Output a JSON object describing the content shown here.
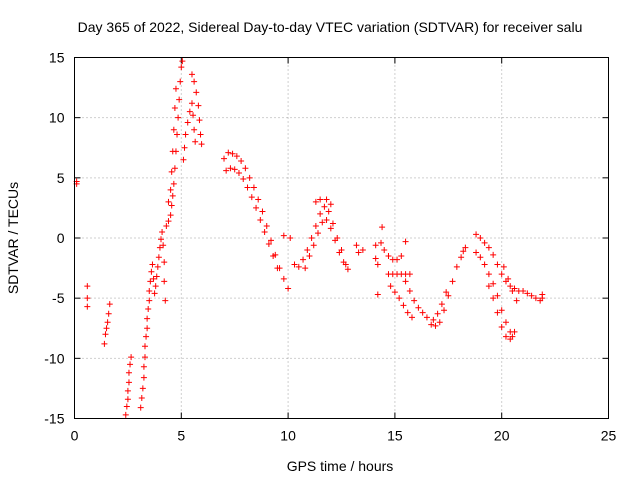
{
  "chart_data": {
    "type": "scatter",
    "title": "Day 365 of 2022, Sidereal Day-to-day VTEC variation (SDTVAR) for receiver salu",
    "xlabel": "GPS time / hours",
    "ylabel": "SDTVAR / TECUs",
    "xlim": [
      0,
      25
    ],
    "ylim": [
      -15,
      15
    ],
    "xticks": [
      0,
      5,
      10,
      15,
      20,
      25
    ],
    "yticks": [
      -15,
      -10,
      -5,
      0,
      5,
      10,
      15
    ],
    "xtick_labels": [
      "0",
      "5",
      "10",
      "15",
      "20",
      "25"
    ],
    "ytick_labels": [
      "-15",
      "-10",
      "-5",
      "0",
      "5",
      "10",
      "15"
    ],
    "grid": true,
    "marker": "+",
    "color": "#ff0000",
    "series": [
      {
        "name": "SDTVAR",
        "points": [
          [
            0.1,
            4.7
          ],
          [
            0.1,
            4.5
          ],
          [
            0.6,
            -4.0
          ],
          [
            0.6,
            -5.0
          ],
          [
            0.6,
            -5.7
          ],
          [
            1.4,
            -8.8
          ],
          [
            1.45,
            -8.0
          ],
          [
            1.5,
            -7.5
          ],
          [
            1.55,
            -7.0
          ],
          [
            1.6,
            -6.3
          ],
          [
            1.65,
            -5.5
          ],
          [
            2.4,
            -14.7
          ],
          [
            2.45,
            -14.0
          ],
          [
            2.5,
            -13.4
          ],
          [
            2.5,
            -12.7
          ],
          [
            2.55,
            -12.0
          ],
          [
            2.55,
            -11.2
          ],
          [
            2.6,
            -10.5
          ],
          [
            2.65,
            -9.9
          ],
          [
            3.1,
            -14.1
          ],
          [
            3.15,
            -13.3
          ],
          [
            3.2,
            -12.5
          ],
          [
            3.25,
            -11.6
          ],
          [
            3.25,
            -10.7
          ],
          [
            3.3,
            -9.9
          ],
          [
            3.3,
            -9.0
          ],
          [
            3.35,
            -8.2
          ],
          [
            3.4,
            -7.5
          ],
          [
            3.4,
            -6.7
          ],
          [
            3.45,
            -5.9
          ],
          [
            3.5,
            -5.2
          ],
          [
            3.5,
            -4.4
          ],
          [
            3.55,
            -3.6
          ],
          [
            3.6,
            -2.8
          ],
          [
            3.65,
            -2.2
          ],
          [
            3.7,
            -3.4
          ],
          [
            3.75,
            -4.6
          ],
          [
            3.8,
            -4.0
          ],
          [
            3.85,
            -3.2
          ],
          [
            3.9,
            -2.4
          ],
          [
            3.95,
            -1.6
          ],
          [
            4.0,
            -0.8
          ],
          [
            4.05,
            -0.1
          ],
          [
            4.1,
            0.5
          ],
          [
            4.15,
            -0.6
          ],
          [
            4.2,
            -2.0
          ],
          [
            4.2,
            -3.6
          ],
          [
            4.25,
            -5.2
          ],
          [
            4.3,
            1.0
          ],
          [
            4.4,
            1.4
          ],
          [
            4.5,
            1.9
          ],
          [
            4.55,
            2.7
          ],
          [
            4.6,
            3.5
          ],
          [
            4.65,
            4.5
          ],
          [
            4.7,
            5.8
          ],
          [
            4.75,
            7.2
          ],
          [
            4.8,
            8.6
          ],
          [
            4.85,
            10.0
          ],
          [
            4.9,
            11.5
          ],
          [
            4.95,
            13.0
          ],
          [
            5.0,
            14.2
          ],
          [
            5.05,
            14.7
          ],
          [
            4.4,
            3.0
          ],
          [
            4.5,
            4.0
          ],
          [
            4.55,
            5.5
          ],
          [
            4.6,
            7.2
          ],
          [
            4.65,
            9.0
          ],
          [
            4.7,
            10.8
          ],
          [
            4.75,
            12.4
          ],
          [
            5.1,
            6.5
          ],
          [
            5.15,
            7.5
          ],
          [
            5.2,
            8.6
          ],
          [
            5.3,
            9.6
          ],
          [
            5.4,
            10.5
          ],
          [
            5.5,
            11.2
          ],
          [
            5.55,
            10.2
          ],
          [
            5.6,
            9.0
          ],
          [
            5.65,
            8.0
          ],
          [
            5.5,
            13.6
          ],
          [
            5.6,
            13.0
          ],
          [
            5.7,
            12.1
          ],
          [
            5.8,
            11.0
          ],
          [
            5.85,
            9.8
          ],
          [
            5.9,
            8.6
          ],
          [
            5.95,
            7.8
          ],
          [
            7.0,
            6.6
          ],
          [
            7.2,
            7.1
          ],
          [
            7.4,
            7.0
          ],
          [
            7.6,
            6.8
          ],
          [
            7.8,
            6.4
          ],
          [
            8.0,
            5.8
          ],
          [
            8.2,
            5.0
          ],
          [
            8.4,
            4.2
          ],
          [
            8.6,
            3.2
          ],
          [
            8.8,
            2.2
          ],
          [
            9.0,
            1.0
          ],
          [
            9.2,
            -0.2
          ],
          [
            9.4,
            -1.4
          ],
          [
            9.6,
            -2.5
          ],
          [
            9.8,
            -3.4
          ],
          [
            10.0,
            -4.2
          ],
          [
            7.1,
            5.6
          ],
          [
            7.3,
            5.8
          ],
          [
            7.5,
            5.7
          ],
          [
            7.7,
            5.4
          ],
          [
            7.9,
            4.9
          ],
          [
            8.1,
            4.2
          ],
          [
            8.3,
            3.4
          ],
          [
            8.5,
            2.5
          ],
          [
            8.7,
            1.5
          ],
          [
            8.9,
            0.5
          ],
          [
            9.1,
            -0.5
          ],
          [
            9.3,
            -1.5
          ],
          [
            9.5,
            -2.5
          ],
          [
            9.8,
            0.2
          ],
          [
            10.1,
            0.0
          ],
          [
            10.3,
            -2.2
          ],
          [
            10.5,
            -2.4
          ],
          [
            10.7,
            -1.8
          ],
          [
            10.9,
            -1.0
          ],
          [
            11.1,
            0.0
          ],
          [
            11.3,
            1.0
          ],
          [
            11.5,
            2.0
          ],
          [
            11.7,
            2.6
          ],
          [
            11.9,
            2.2
          ],
          [
            12.1,
            1.2
          ],
          [
            12.3,
            0.0
          ],
          [
            12.5,
            -1.0
          ],
          [
            12.7,
            -2.2
          ],
          [
            12.8,
            -2.6
          ],
          [
            10.8,
            -2.5
          ],
          [
            11.0,
            -1.5
          ],
          [
            11.2,
            -0.6
          ],
          [
            11.4,
            0.4
          ],
          [
            11.6,
            1.3
          ],
          [
            11.8,
            1.5
          ],
          [
            12.0,
            0.8
          ],
          [
            12.2,
            -0.2
          ],
          [
            12.4,
            -1.2
          ],
          [
            12.6,
            -2.0
          ],
          [
            11.3,
            3.0
          ],
          [
            11.5,
            3.2
          ],
          [
            11.8,
            3.2
          ],
          [
            12.0,
            2.8
          ],
          [
            13.2,
            -0.6
          ],
          [
            13.3,
            -1.2
          ],
          [
            13.5,
            -1.0
          ],
          [
            14.1,
            -0.6
          ],
          [
            14.1,
            -1.7
          ],
          [
            14.2,
            -2.2
          ],
          [
            14.2,
            -4.7
          ],
          [
            14.35,
            -0.4
          ],
          [
            14.4,
            0.9
          ],
          [
            14.5,
            -1.0
          ],
          [
            14.7,
            -1.5
          ],
          [
            14.9,
            -1.8
          ],
          [
            15.1,
            -1.8
          ],
          [
            15.3,
            -1.5
          ],
          [
            15.5,
            -0.3
          ],
          [
            14.7,
            -3.0
          ],
          [
            14.9,
            -3.0
          ],
          [
            15.1,
            -3.0
          ],
          [
            15.3,
            -3.0
          ],
          [
            15.5,
            -3.0
          ],
          [
            15.7,
            -3.0
          ],
          [
            14.8,
            -4.0
          ],
          [
            15.0,
            -4.5
          ],
          [
            15.2,
            -5.0
          ],
          [
            15.4,
            -5.6
          ],
          [
            15.6,
            -6.2
          ],
          [
            15.8,
            -6.6
          ],
          [
            15.5,
            -3.6
          ],
          [
            15.7,
            -4.4
          ],
          [
            15.9,
            -5.2
          ],
          [
            16.1,
            -5.8
          ],
          [
            16.3,
            -6.2
          ],
          [
            16.5,
            -6.6
          ],
          [
            16.7,
            -7.2
          ],
          [
            16.9,
            -7.3
          ],
          [
            17.1,
            -7.0
          ],
          [
            17.3,
            -6.0
          ],
          [
            17.5,
            -4.8
          ],
          [
            17.7,
            -3.6
          ],
          [
            17.9,
            -2.4
          ],
          [
            18.1,
            -1.6
          ],
          [
            18.2,
            -1.1
          ],
          [
            18.3,
            -0.8
          ],
          [
            16.8,
            -6.8
          ],
          [
            17.0,
            -6.3
          ],
          [
            17.2,
            -5.5
          ],
          [
            17.4,
            -4.5
          ],
          [
            18.8,
            0.3
          ],
          [
            19.0,
            0.0
          ],
          [
            19.2,
            -0.4
          ],
          [
            19.4,
            -0.8
          ],
          [
            19.6,
            -1.4
          ],
          [
            19.8,
            -2.2
          ],
          [
            20.0,
            -3.0
          ],
          [
            20.2,
            -3.6
          ],
          [
            20.4,
            -4.0
          ],
          [
            20.6,
            -4.2
          ],
          [
            20.8,
            -4.4
          ],
          [
            18.8,
            -1.2
          ],
          [
            19.0,
            -1.6
          ],
          [
            19.2,
            -2.2
          ],
          [
            19.4,
            -3.0
          ],
          [
            19.6,
            -3.8
          ],
          [
            19.8,
            -4.8
          ],
          [
            20.0,
            -6.0
          ],
          [
            20.2,
            -7.0
          ],
          [
            20.4,
            -7.8
          ],
          [
            20.5,
            -8.2
          ],
          [
            20.6,
            -7.8
          ],
          [
            19.4,
            -4.0
          ],
          [
            19.6,
            -5.0
          ],
          [
            19.8,
            -6.2
          ],
          [
            20.0,
            -7.4
          ],
          [
            20.2,
            -8.2
          ],
          [
            20.4,
            -8.4
          ],
          [
            20.1,
            -2.4
          ],
          [
            20.3,
            -3.4
          ],
          [
            20.5,
            -4.4
          ],
          [
            20.7,
            -5.2
          ],
          [
            21.0,
            -4.4
          ],
          [
            21.2,
            -4.6
          ],
          [
            21.4,
            -4.8
          ],
          [
            21.6,
            -5.0
          ],
          [
            21.8,
            -5.2
          ],
          [
            21.9,
            -5.0
          ],
          [
            21.9,
            -4.7
          ]
        ]
      }
    ]
  }
}
